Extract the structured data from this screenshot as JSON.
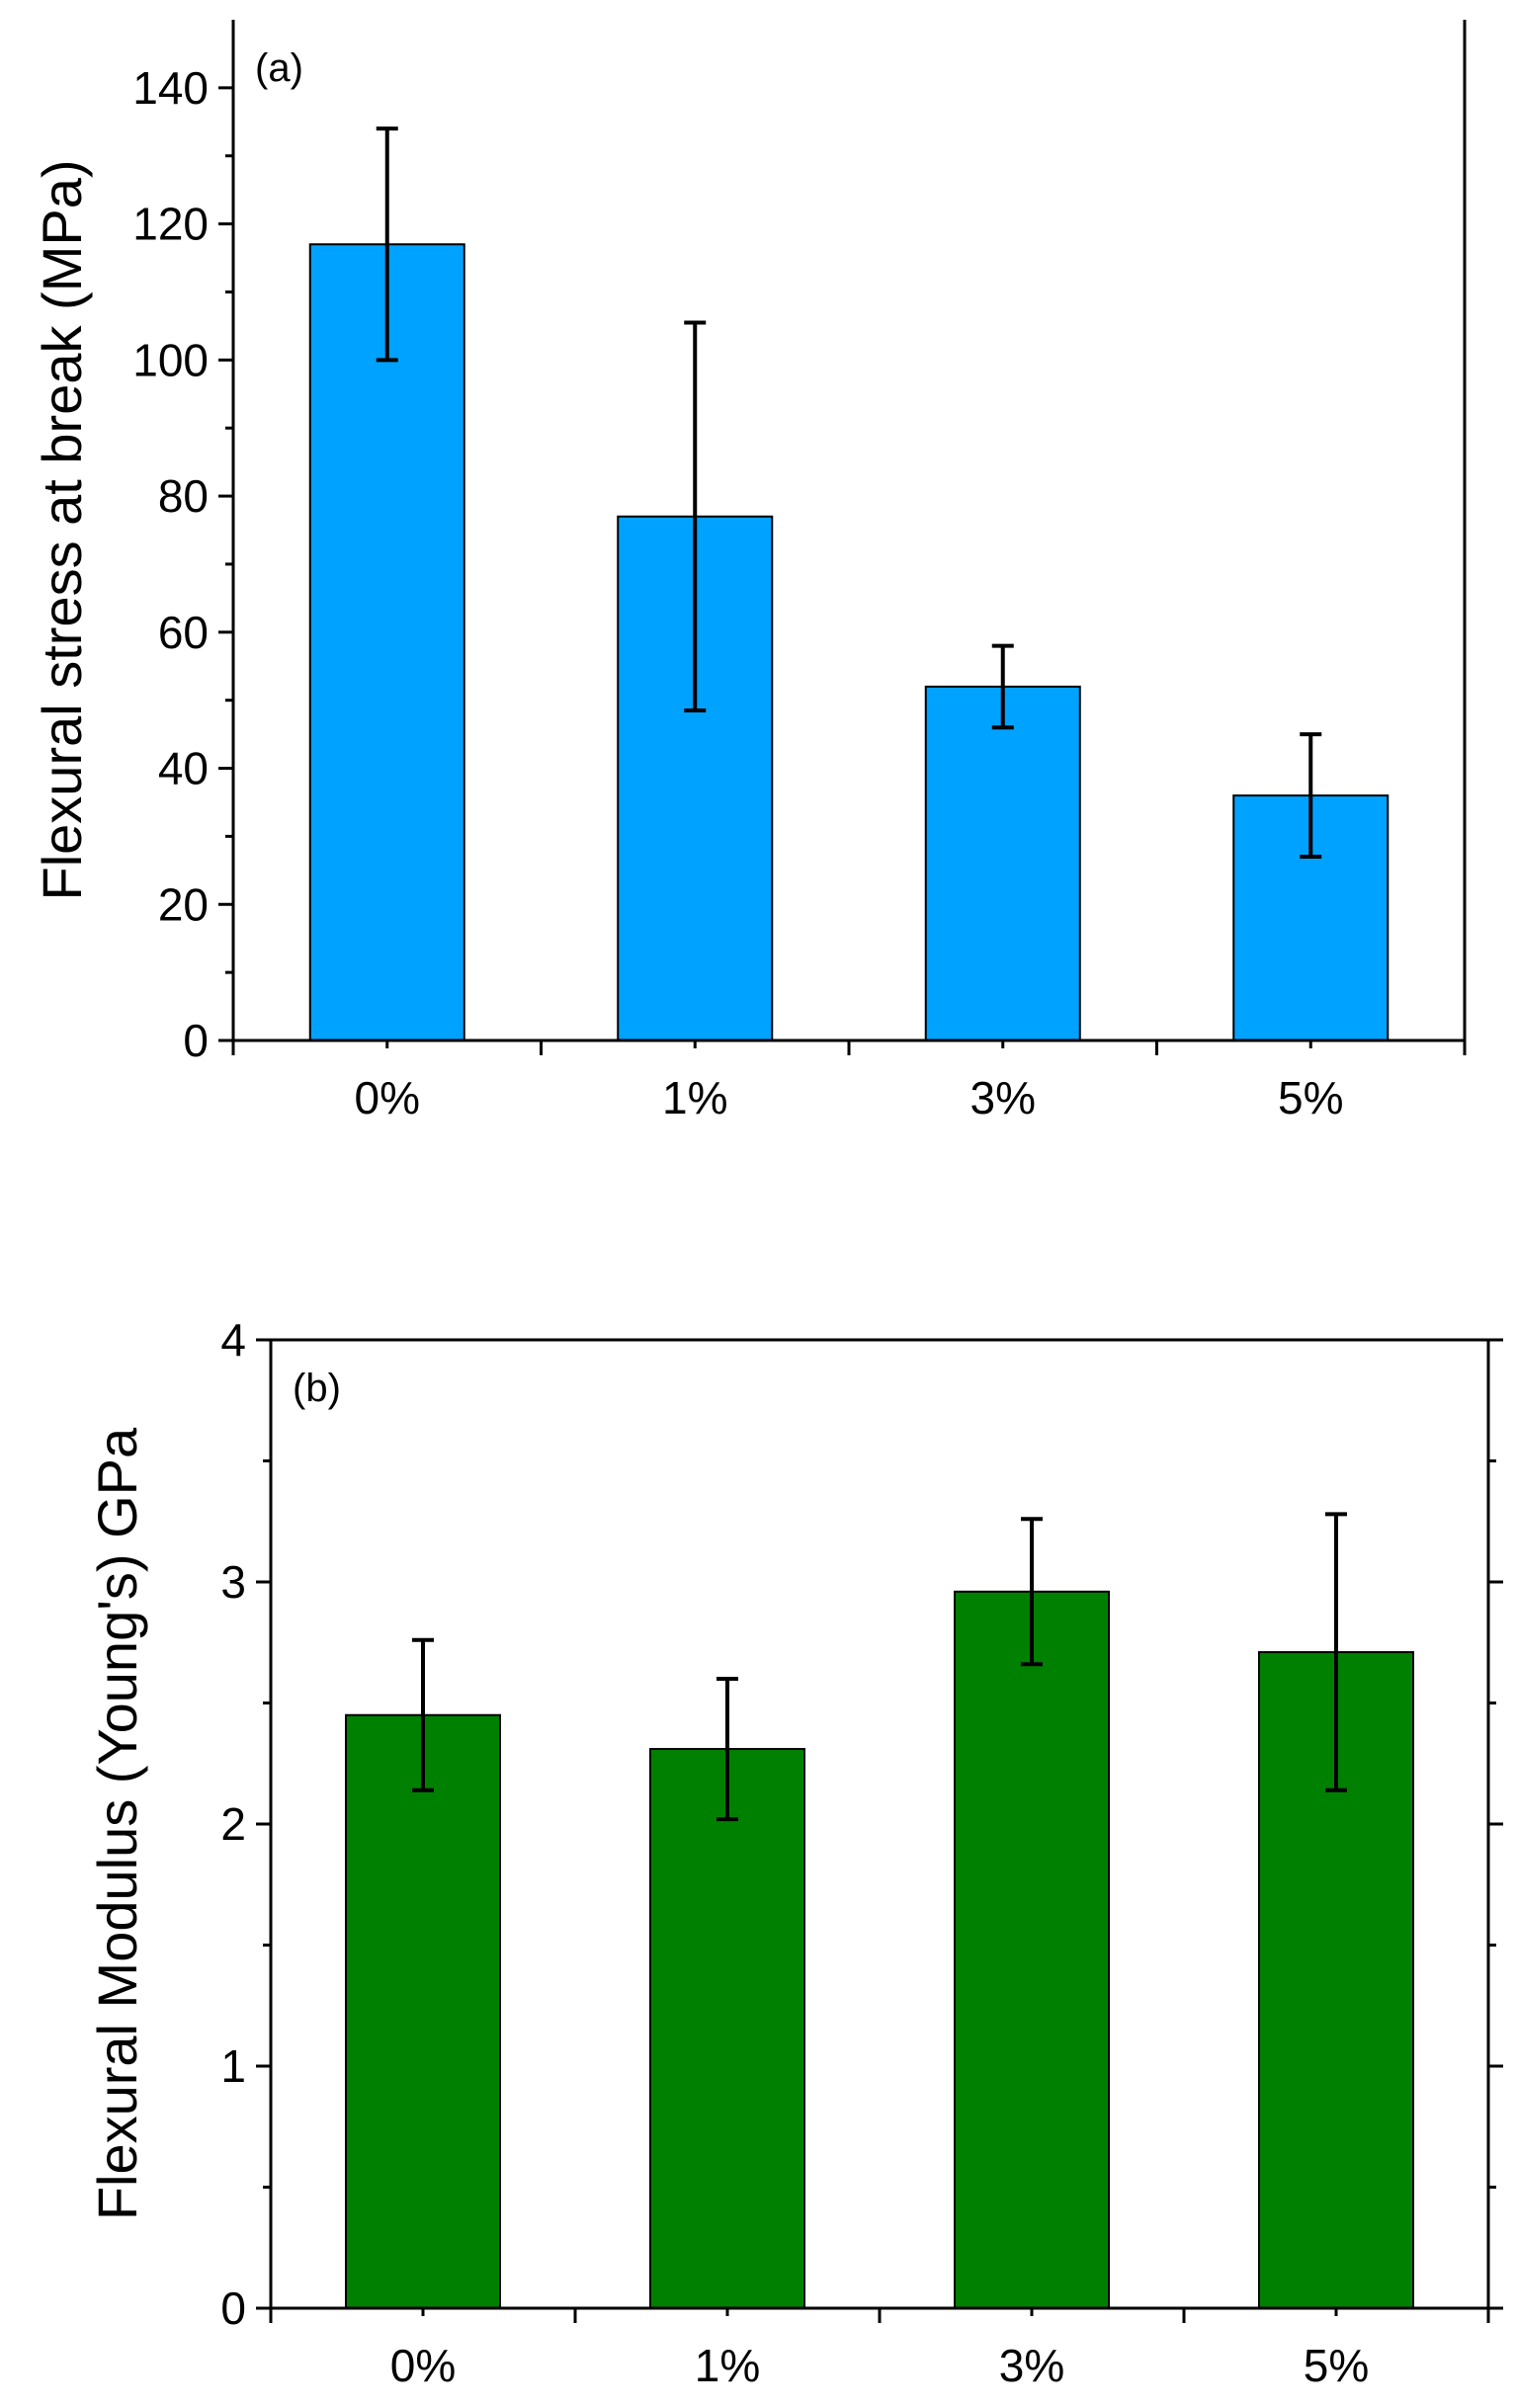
{
  "chart_data": [
    {
      "type": "bar",
      "panel_label": "(a)",
      "categories": [
        "0%",
        "1%",
        "3%",
        "5%"
      ],
      "values": [
        117,
        77,
        52,
        36
      ],
      "errors": [
        17,
        28.5,
        6,
        9
      ],
      "ylabel": "Flexural stress at break (MPa)",
      "xlabel": "",
      "ylim": [
        0,
        150
      ],
      "yticks": [
        0,
        20,
        40,
        60,
        80,
        100,
        120,
        140
      ],
      "ytick_labels": [
        "0",
        "20",
        "40",
        "60",
        "80",
        "100",
        "120",
        "140"
      ],
      "bar_color": "#00a2ff",
      "grid": false
    },
    {
      "type": "bar",
      "panel_label": "(b)",
      "categories": [
        "0%",
        "1%",
        "3%",
        "5%"
      ],
      "values": [
        2.45,
        2.31,
        2.96,
        2.71
      ],
      "errors": [
        0.31,
        0.29,
        0.3,
        0.57
      ],
      "ylabel": "Flexural Modulus (Young's) GPa",
      "xlabel": "",
      "ylim": [
        0,
        4
      ],
      "yticks": [
        0,
        1,
        2,
        3,
        4
      ],
      "ytick_labels": [
        "0",
        "1",
        "2",
        "3",
        "4"
      ],
      "bar_color": "#008000",
      "grid": false
    }
  ]
}
